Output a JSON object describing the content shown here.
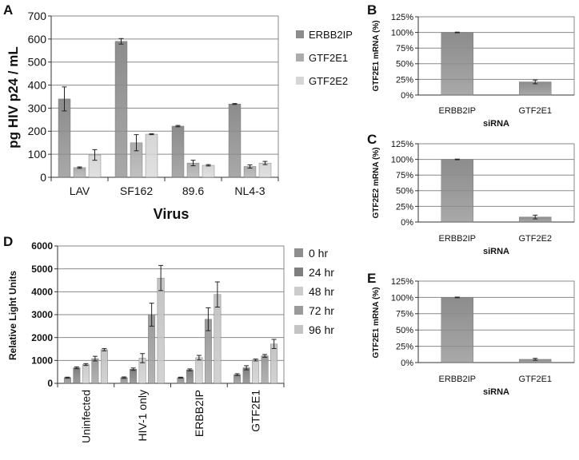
{
  "colors": {
    "ERBB2IP": "#8c8c8c",
    "GTF2E1": "#acacac",
    "GTF2E2": "#d6d6d6",
    "hr0": "#8e8e8e",
    "hr24": "#7e7e7e",
    "hr48": "#cccccc",
    "hr72": "#9a9a9a",
    "hr96": "#c4c4c4",
    "grid": "#8a8a8a",
    "axis": "#333333",
    "text": "#111111"
  },
  "chart_data": [
    {
      "panel": "A",
      "type": "bar",
      "title": "",
      "xlabel": "Virus",
      "ylabel": "pg HIV p24 / mL",
      "ylim": [
        0,
        700
      ],
      "yticks": [
        "0",
        "100",
        "200",
        "300",
        "400",
        "500",
        "600",
        "700"
      ],
      "categories": [
        "LAV",
        "SF162",
        "89.6",
        "NL4-3"
      ],
      "series": [
        {
          "name": "ERBB2IP",
          "values": [
            340,
            590,
            222,
            318
          ],
          "errors": [
            52,
            12,
            3,
            2
          ]
        },
        {
          "name": "GTF2E1",
          "values": [
            42,
            150,
            62,
            47
          ],
          "errors": [
            3,
            35,
            12,
            7
          ]
        },
        {
          "name": "GTF2E2",
          "values": [
            97,
            187,
            52,
            62
          ],
          "errors": [
            23,
            2,
            3,
            7
          ]
        }
      ],
      "legend": "right",
      "grid": true
    },
    {
      "panel": "B",
      "type": "bar",
      "title": "",
      "xlabel": "siRNA",
      "ylabel": "GTF2E1 mRNA (%)",
      "ylim": [
        0,
        125
      ],
      "yticks": [
        "0%",
        "25%",
        "50%",
        "75%",
        "100%",
        "125%"
      ],
      "categories": [
        "ERBB2IP",
        "GTF2E1"
      ],
      "values": [
        100,
        21
      ],
      "errors": [
        0.5,
        3
      ],
      "grid": true
    },
    {
      "panel": "C",
      "type": "bar",
      "title": "",
      "xlabel": "siRNA",
      "ylabel": "GTF2E2 mRNA (%)",
      "ylim": [
        0,
        125
      ],
      "yticks": [
        "0%",
        "25%",
        "50%",
        "75%",
        "100%",
        "125%"
      ],
      "categories": [
        "ERBB2IP",
        "GTF2E2"
      ],
      "values": [
        100,
        8
      ],
      "errors": [
        0.5,
        3
      ],
      "grid": true
    },
    {
      "panel": "D",
      "type": "bar",
      "title": "",
      "xlabel": "",
      "ylabel": "Relative Light Units",
      "ylim": [
        0,
        6000
      ],
      "yticks": [
        "0",
        "1000",
        "2000",
        "3000",
        "4000",
        "5000",
        "6000"
      ],
      "categories": [
        "Uninfected",
        "HIV-1 only",
        "ERBB2IP",
        "GTF2E1"
      ],
      "series": [
        {
          "name": "0 hr",
          "values": [
            250,
            250,
            250,
            380
          ],
          "errors": [
            20,
            30,
            20,
            40
          ]
        },
        {
          "name": "24 hr",
          "values": [
            680,
            620,
            590,
            680
          ],
          "errors": [
            40,
            50,
            40,
            90
          ]
        },
        {
          "name": "48 hr",
          "values": [
            820,
            1100,
            1120,
            1020
          ],
          "errors": [
            40,
            200,
            100,
            40
          ]
        },
        {
          "name": "72 hr",
          "values": [
            1080,
            3000,
            2800,
            1200
          ],
          "errors": [
            100,
            500,
            500,
            60
          ]
        },
        {
          "name": "96 hr",
          "values": [
            1470,
            4600,
            3880,
            1720
          ],
          "errors": [
            50,
            550,
            550,
            200
          ]
        }
      ],
      "legend": "right",
      "grid": true
    },
    {
      "panel": "E",
      "type": "bar",
      "title": "",
      "xlabel": "siRNA",
      "ylabel": "GTF2E1 mRNA (%)",
      "ylim": [
        0,
        125
      ],
      "yticks": [
        "0%",
        "25%",
        "50%",
        "75%",
        "100%",
        "125%"
      ],
      "categories": [
        "ERBB2IP",
        "GTF2E1"
      ],
      "values": [
        100,
        5
      ],
      "errors": [
        0.5,
        1.5
      ],
      "grid": true
    }
  ]
}
